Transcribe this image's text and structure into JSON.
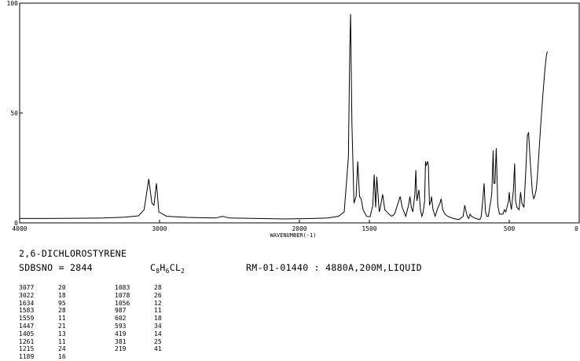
{
  "chart_data": {
    "type": "line",
    "title": "",
    "xlabel": "WAVENUMBER(-1)",
    "ylabel": "",
    "xlim": [
      4000,
      0
    ],
    "ylim": [
      0,
      100
    ],
    "x_ticks": [
      {
        "value": 4000,
        "label": "4000"
      },
      {
        "value": 3000,
        "label": "3000"
      },
      {
        "value": 2000,
        "label": "2000"
      },
      {
        "value": 1500,
        "label": "1500"
      },
      {
        "value": 500,
        "label": "500"
      },
      {
        "value": 0,
        "label": "0"
      }
    ],
    "y_ticks": [
      {
        "value": 100,
        "label": "100"
      },
      {
        "value": 50,
        "label": "50"
      },
      {
        "value": 0,
        "label": "0"
      }
    ],
    "grid": false,
    "series": [
      {
        "values": [
          [
            4000,
            2
          ],
          [
            3800,
            2
          ],
          [
            3600,
            2.1
          ],
          [
            3400,
            2.2
          ],
          [
            3250,
            2.6
          ],
          [
            3150,
            3.2
          ],
          [
            3110,
            6
          ],
          [
            3077,
            20
          ],
          [
            3055,
            9
          ],
          [
            3040,
            8
          ],
          [
            3022,
            18
          ],
          [
            3005,
            5
          ],
          [
            2950,
            3
          ],
          [
            2800,
            2.5
          ],
          [
            2600,
            2.2
          ],
          [
            2550,
            3
          ],
          [
            2500,
            2.2
          ],
          [
            2300,
            2
          ],
          [
            2100,
            1.8
          ],
          [
            1900,
            2
          ],
          [
            1800,
            2.2
          ],
          [
            1720,
            3
          ],
          [
            1680,
            5
          ],
          [
            1650,
            30
          ],
          [
            1640,
            80
          ],
          [
            1634,
            95
          ],
          [
            1625,
            45
          ],
          [
            1610,
            9
          ],
          [
            1595,
            12
          ],
          [
            1583,
            28
          ],
          [
            1570,
            12
          ],
          [
            1559,
            11
          ],
          [
            1545,
            6
          ],
          [
            1520,
            3
          ],
          [
            1495,
            2.8
          ],
          [
            1475,
            8
          ],
          [
            1466,
            22
          ],
          [
            1455,
            7
          ],
          [
            1447,
            21
          ],
          [
            1430,
            5
          ],
          [
            1425,
            6
          ],
          [
            1405,
            13
          ],
          [
            1390,
            6
          ],
          [
            1360,
            4
          ],
          [
            1340,
            3
          ],
          [
            1320,
            4
          ],
          [
            1300,
            8
          ],
          [
            1280,
            12
          ],
          [
            1265,
            7
          ],
          [
            1240,
            3
          ],
          [
            1220,
            8
          ],
          [
            1210,
            12
          ],
          [
            1200,
            7
          ],
          [
            1190,
            5
          ],
          [
            1175,
            13
          ],
          [
            1168,
            24
          ],
          [
            1160,
            10
          ],
          [
            1146,
            15
          ],
          [
            1135,
            6
          ],
          [
            1125,
            3
          ],
          [
            1115,
            5
          ],
          [
            1105,
            10
          ],
          [
            1099,
            28
          ],
          [
            1093,
            26
          ],
          [
            1083,
            28
          ],
          [
            1078,
            26
          ],
          [
            1070,
            8
          ],
          [
            1060,
            10
          ],
          [
            1056,
            12
          ],
          [
            1045,
            6
          ],
          [
            1030,
            3
          ],
          [
            1010,
            7
          ],
          [
            995,
            9
          ],
          [
            987,
            11
          ],
          [
            975,
            6
          ],
          [
            960,
            4
          ],
          [
            940,
            3
          ],
          [
            920,
            2.5
          ],
          [
            900,
            2
          ],
          [
            860,
            1.5
          ],
          [
            830,
            3
          ],
          [
            818,
            8
          ],
          [
            812,
            6
          ],
          [
            800,
            3
          ],
          [
            790,
            2
          ],
          [
            780,
            4
          ],
          [
            770,
            3
          ],
          [
            740,
            2
          ],
          [
            710,
            1.5
          ],
          [
            700,
            3
          ],
          [
            690,
            10
          ],
          [
            680,
            18
          ],
          [
            670,
            5
          ],
          [
            660,
            3
          ],
          [
            650,
            3
          ],
          [
            640,
            7
          ],
          [
            630,
            11
          ],
          [
            625,
            14
          ],
          [
            615,
            33
          ],
          [
            610,
            18
          ],
          [
            602,
            18
          ],
          [
            593,
            34
          ],
          [
            582,
            8
          ],
          [
            570,
            4
          ],
          [
            555,
            4
          ],
          [
            545,
            4
          ],
          [
            535,
            6
          ],
          [
            525,
            5
          ],
          [
            505,
            10
          ],
          [
            500,
            14
          ],
          [
            495,
            10
          ],
          [
            485,
            6
          ],
          [
            470,
            15
          ],
          [
            462,
            27
          ],
          [
            455,
            10
          ],
          [
            445,
            7
          ],
          [
            430,
            6
          ],
          [
            419,
            14
          ],
          [
            410,
            9
          ],
          [
            395,
            7
          ],
          [
            381,
            25
          ],
          [
            370,
            40
          ],
          [
            362,
            41
          ],
          [
            350,
            28
          ],
          [
            335,
            14
          ],
          [
            325,
            11
          ],
          [
            318,
            12
          ],
          [
            308,
            15
          ],
          [
            300,
            20
          ],
          [
            290,
            30
          ],
          [
            275,
            45
          ],
          [
            260,
            58
          ],
          [
            245,
            70
          ],
          [
            235,
            76
          ],
          [
            228,
            78
          ]
        ]
      }
    ]
  },
  "info": {
    "compound_name": "2,6-DICHLOROSTYRENE",
    "sdbs_line": "SDBSNO = 2844",
    "formula": {
      "c": "C",
      "c_sub": "8",
      "h": "H",
      "h_sub": "6",
      "cl": "CL",
      "cl_sub": "2"
    },
    "measurement": "RM-01-01440 : 4880A,200M,LIQUID"
  },
  "peak_table": {
    "left": [
      {
        "wavenumber": "3077",
        "transmittance": "20"
      },
      {
        "wavenumber": "3022",
        "transmittance": "18"
      },
      {
        "wavenumber": "1634",
        "transmittance": "95"
      },
      {
        "wavenumber": "1583",
        "transmittance": "28"
      },
      {
        "wavenumber": "1559",
        "transmittance": "11"
      },
      {
        "wavenumber": "1447",
        "transmittance": "21"
      },
      {
        "wavenumber": "1405",
        "transmittance": "13"
      },
      {
        "wavenumber": "1261",
        "transmittance": "11"
      },
      {
        "wavenumber": "1215",
        "transmittance": "24"
      },
      {
        "wavenumber": "1189",
        "transmittance": "16"
      }
    ],
    "right": [
      {
        "wavenumber": "1083",
        "transmittance": "28"
      },
      {
        "wavenumber": "1078",
        "transmittance": "26"
      },
      {
        "wavenumber": "1056",
        "transmittance": "12"
      },
      {
        "wavenumber": "987",
        "transmittance": "11"
      },
      {
        "wavenumber": "602",
        "transmittance": "18"
      },
      {
        "wavenumber": "593",
        "transmittance": "34"
      },
      {
        "wavenumber": "419",
        "transmittance": "14"
      },
      {
        "wavenumber": "381",
        "transmittance": "25"
      },
      {
        "wavenumber": "219",
        "transmittance": "41"
      }
    ]
  }
}
